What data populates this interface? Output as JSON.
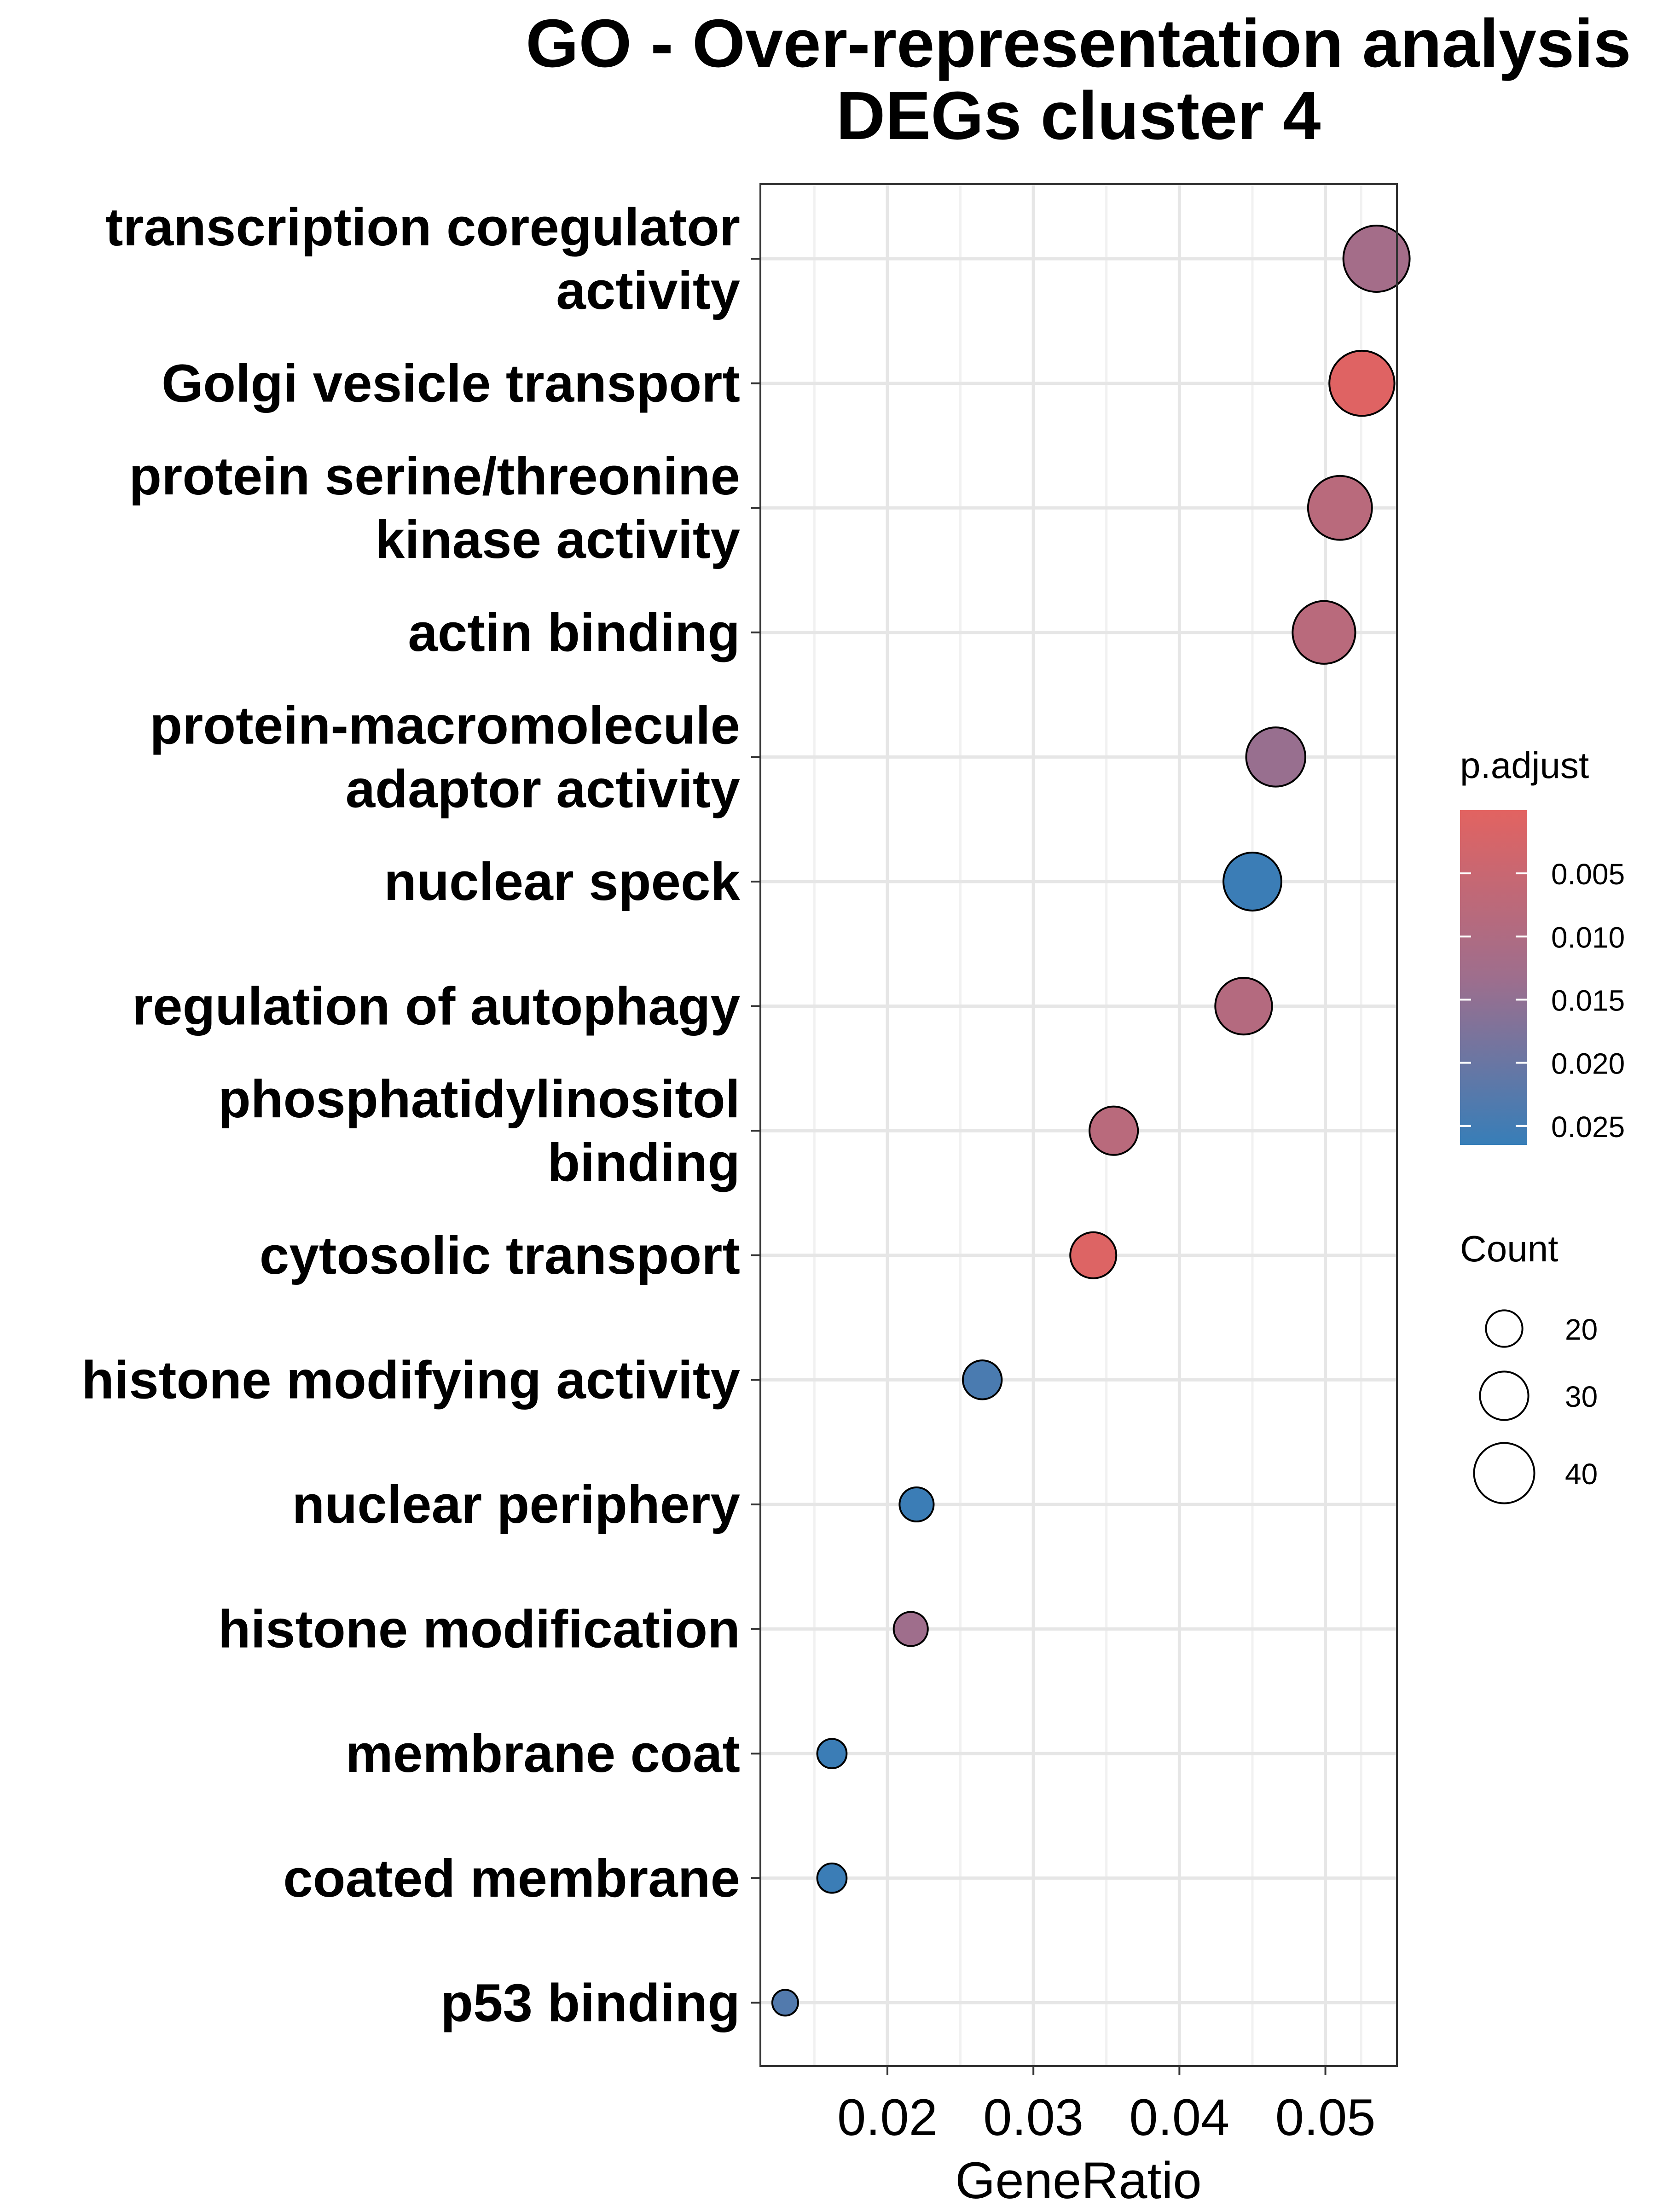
{
  "chart_data": {
    "type": "scatter",
    "title_lines": [
      "GO - Over-representation analysis",
      "DEGs cluster 4"
    ],
    "xlabel": "GeneRatio",
    "ylabel": "",
    "xlim": [
      0.0113,
      0.0549
    ],
    "x_ticks": [
      0.02,
      0.03,
      0.04,
      0.05
    ],
    "x_tick_labels": [
      "0.02",
      "0.03",
      "0.04",
      "0.05"
    ],
    "grid": true,
    "categories": [
      "transcription coregulator activity",
      "Golgi vesicle transport",
      "protein serine/threonine kinase activity",
      "actin binding",
      "protein-macromolecule adaptor activity",
      "nuclear speck",
      "regulation of autophagy",
      "phosphatidylinositol binding",
      "cytosolic transport",
      "histone modifying activity",
      "nuclear periphery",
      "histone modification",
      "membrane coat",
      "coated membrane",
      "p53 binding"
    ],
    "category_label_lines": [
      [
        "transcription coregulator",
        "activity"
      ],
      [
        "Golgi vesicle transport"
      ],
      [
        "protein serine/threonine",
        "kinase activity"
      ],
      [
        "actin binding"
      ],
      [
        "protein-macromolecule",
        "adaptor activity"
      ],
      [
        "nuclear speck"
      ],
      [
        "regulation of autophagy"
      ],
      [
        "phosphatidylinositol",
        "binding"
      ],
      [
        "cytosolic transport"
      ],
      [
        "histone modifying activity"
      ],
      [
        "nuclear periphery"
      ],
      [
        "histone modification"
      ],
      [
        "membrane coat"
      ],
      [
        "coated membrane"
      ],
      [
        "p53 binding"
      ]
    ],
    "points": [
      {
        "term": "transcription coregulator activity",
        "gene_ratio": 0.0535,
        "count": 45,
        "p_adjust": 0.012
      },
      {
        "term": "Golgi vesicle transport",
        "gene_ratio": 0.0525,
        "count": 44,
        "p_adjust": 0.0005
      },
      {
        "term": "protein serine/threonine kinase activity",
        "gene_ratio": 0.051,
        "count": 43,
        "p_adjust": 0.008
      },
      {
        "term": "actin binding",
        "gene_ratio": 0.0499,
        "count": 42,
        "p_adjust": 0.008
      },
      {
        "term": "protein-macromolecule adaptor activity",
        "gene_ratio": 0.0466,
        "count": 39,
        "p_adjust": 0.014
      },
      {
        "term": "nuclear speck",
        "gene_ratio": 0.045,
        "count": 38,
        "p_adjust": 0.026
      },
      {
        "term": "regulation of autophagy",
        "gene_ratio": 0.0444,
        "count": 37,
        "p_adjust": 0.009
      },
      {
        "term": "phosphatidylinositol binding",
        "gene_ratio": 0.0355,
        "count": 30,
        "p_adjust": 0.008
      },
      {
        "term": "cytosolic transport",
        "gene_ratio": 0.0341,
        "count": 28,
        "p_adjust": 0.001
      },
      {
        "term": "histone modifying activity",
        "gene_ratio": 0.0265,
        "count": 22,
        "p_adjust": 0.024
      },
      {
        "term": "nuclear periphery",
        "gene_ratio": 0.022,
        "count": 18,
        "p_adjust": 0.026
      },
      {
        "term": "histone modification",
        "gene_ratio": 0.0216,
        "count": 18,
        "p_adjust": 0.013
      },
      {
        "term": "membrane coat",
        "gene_ratio": 0.0162,
        "count": 14,
        "p_adjust": 0.026
      },
      {
        "term": "coated membrane",
        "gene_ratio": 0.0162,
        "count": 14,
        "p_adjust": 0.026
      },
      {
        "term": "p53 binding",
        "gene_ratio": 0.013,
        "count": 11,
        "p_adjust": 0.023
      }
    ],
    "color_legend": {
      "title": "p.adjust",
      "low_color": "#E26361",
      "mid_color": "#9E6E8D",
      "high_color": "#377EB8",
      "range": [
        0.0,
        0.0265
      ],
      "ticks": [
        0.005,
        0.01,
        0.015,
        0.02,
        0.025
      ],
      "tick_labels": [
        "0.005",
        "0.010",
        "0.015",
        "0.020",
        "0.025"
      ]
    },
    "size_legend": {
      "title": "Count",
      "values": [
        20,
        30,
        40
      ],
      "labels": [
        "20",
        "30",
        "40"
      ]
    }
  }
}
